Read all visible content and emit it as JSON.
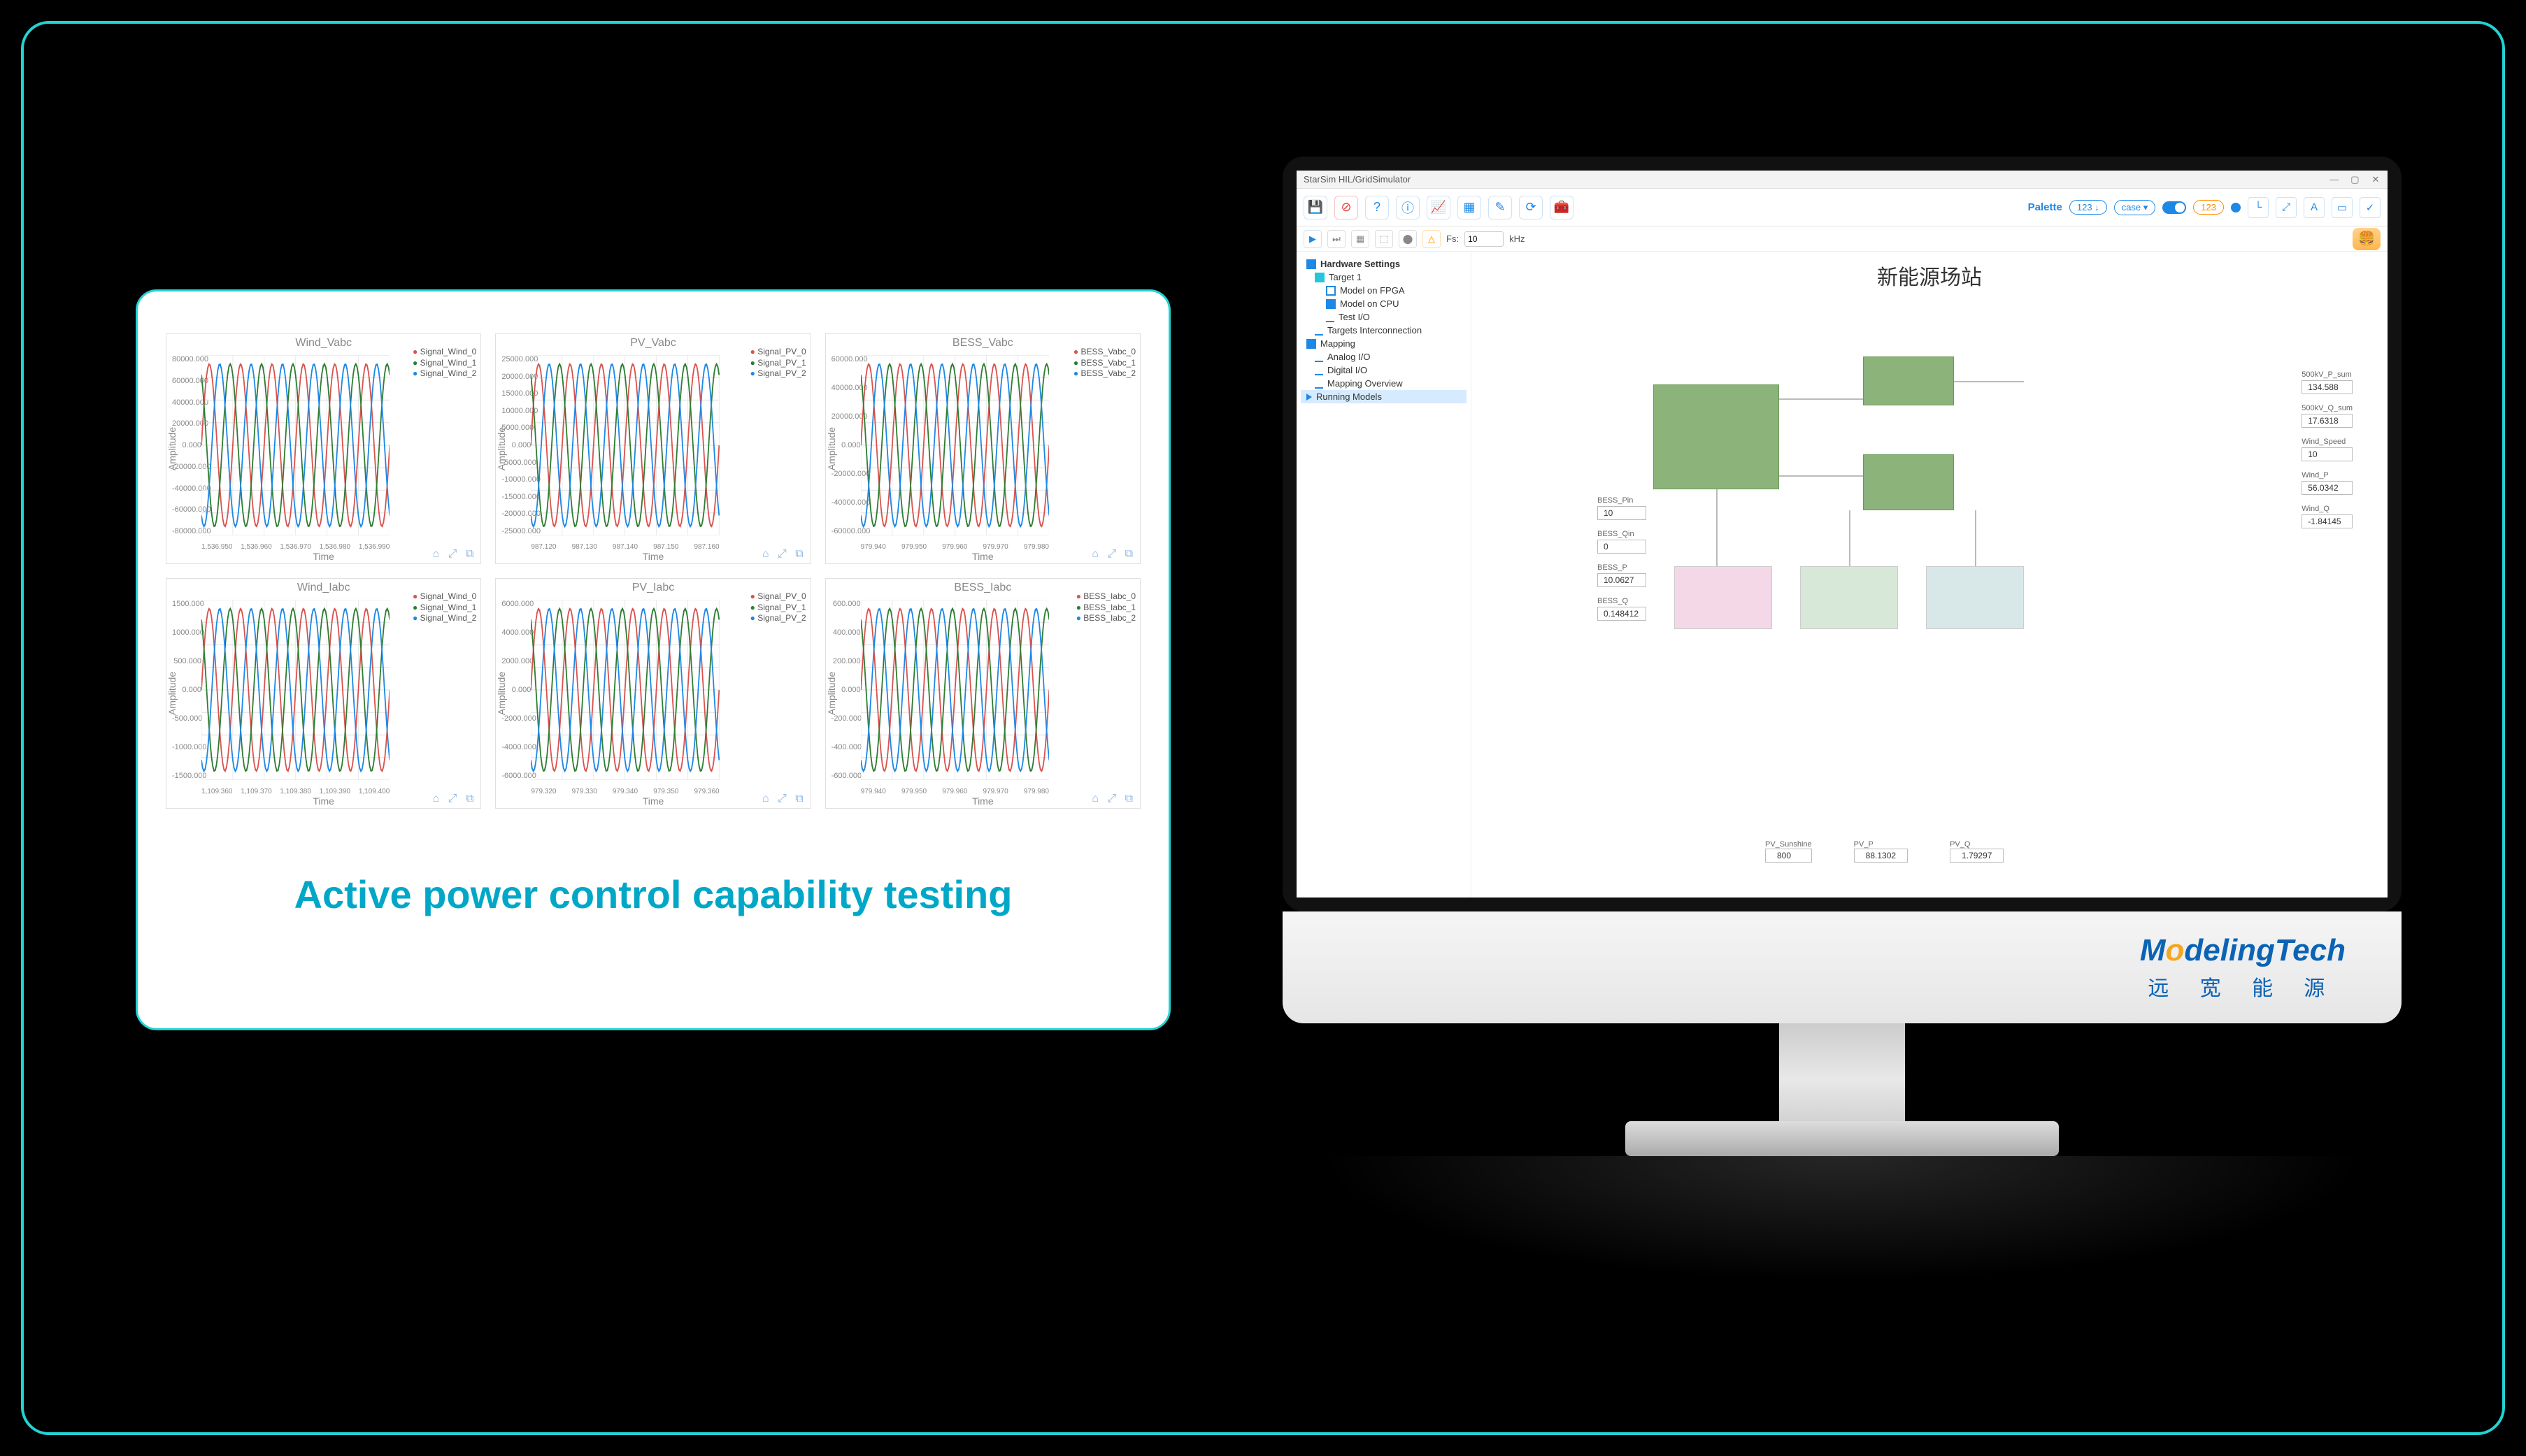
{
  "left_card": {
    "caption": "Active power control capability testing",
    "caption_color": "#00a7c7",
    "charts": [
      {
        "title": "Wind_Vabc",
        "ylabel": "Amplitude",
        "xlabel": "Time",
        "legend": [
          "Signal_Wind_0",
          "Signal_Wind_1",
          "Signal_Wind_2"
        ],
        "yticks": [
          "80000.000",
          "60000.000",
          "40000.000",
          "20000.000",
          "0.000",
          "-20000.000",
          "-40000.000",
          "-60000.000",
          "-80000.000"
        ],
        "xticks": [
          "1,536.950",
          "1,536.960",
          "1,536.970",
          "1,536.980",
          "1,536.990"
        ]
      },
      {
        "title": "PV_Vabc",
        "ylabel": "Amplitude",
        "xlabel": "Time",
        "legend": [
          "Signal_PV_0",
          "Signal_PV_1",
          "Signal_PV_2"
        ],
        "yticks": [
          "25000.000",
          "20000.000",
          "15000.000",
          "10000.000",
          "5000.000",
          "0.000",
          "-5000.000",
          "-10000.000",
          "-15000.000",
          "-20000.000",
          "-25000.000"
        ],
        "xticks": [
          "987.120",
          "987.130",
          "987.140",
          "987.150",
          "987.160"
        ]
      },
      {
        "title": "BESS_Vabc",
        "ylabel": "Amplitude",
        "xlabel": "Time",
        "legend": [
          "BESS_Vabc_0",
          "BESS_Vabc_1",
          "BESS_Vabc_2"
        ],
        "yticks": [
          "60000.000",
          "40000.000",
          "20000.000",
          "0.000",
          "-20000.000",
          "-40000.000",
          "-60000.000"
        ],
        "xticks": [
          "979.940",
          "979.950",
          "979.960",
          "979.970",
          "979.980"
        ]
      },
      {
        "title": "Wind_Iabc",
        "ylabel": "Amplitude",
        "xlabel": "Time",
        "legend": [
          "Signal_Wind_0",
          "Signal_Wind_1",
          "Signal_Wind_2"
        ],
        "yticks": [
          "1500.000",
          "1000.000",
          "500.000",
          "0.000",
          "-500.000",
          "-1000.000",
          "-1500.000"
        ],
        "xticks": [
          "1,109.360",
          "1,109.370",
          "1,109.380",
          "1,109.390",
          "1,109.400"
        ]
      },
      {
        "title": "PV_Iabc",
        "ylabel": "Amplitude",
        "xlabel": "Time",
        "legend": [
          "Signal_PV_0",
          "Signal_PV_1",
          "Signal_PV_2"
        ],
        "yticks": [
          "6000.000",
          "4000.000",
          "2000.000",
          "0.000",
          "-2000.000",
          "-4000.000",
          "-6000.000"
        ],
        "xticks": [
          "979.320",
          "979.330",
          "979.340",
          "979.350",
          "979.360"
        ]
      },
      {
        "title": "BESS_Iabc",
        "ylabel": "Amplitude",
        "xlabel": "Time",
        "legend": [
          "BESS_Iabc_0",
          "BESS_Iabc_1",
          "BESS_Iabc_2"
        ],
        "yticks": [
          "600.000",
          "400.000",
          "200.000",
          "0.000",
          "-200.000",
          "-400.000",
          "-600.000"
        ],
        "xticks": [
          "979.940",
          "979.950",
          "979.960",
          "979.970",
          "979.980"
        ]
      }
    ],
    "wave": {
      "colors": [
        "#d9534f",
        "#2e7d32",
        "#1e88e5"
      ],
      "phases_deg": [
        0,
        120,
        240
      ],
      "cycles": 6,
      "grid_color": "#e8e8e8",
      "line_width": 2
    }
  },
  "monitor": {
    "brand_en": "ModelingTech",
    "brand_cn": "远 宽 能 源",
    "window_title": "StarSim HIL/GridSimulator",
    "main_toolbar": {
      "palette_label": "Palette",
      "pill_123a": "123 ↓",
      "pill_case": "case ▾",
      "pill_123b": "123"
    },
    "sub_toolbar": {
      "fs_label": "Fs:",
      "fs_value": "10",
      "fs_unit": "kHz"
    },
    "tree": {
      "root": "Hardware Settings",
      "items": [
        {
          "label": "Target 1",
          "icon": "sq-cyan",
          "indent": 1
        },
        {
          "label": "Model on FPGA",
          "icon": "sq-outline",
          "indent": 2
        },
        {
          "label": "Model on CPU",
          "icon": "sq-blue",
          "indent": 2
        },
        {
          "label": "Test I/O",
          "icon": "link",
          "indent": 2
        },
        {
          "label": "Targets Interconnection",
          "icon": "link",
          "indent": 1
        },
        {
          "label": "Mapping",
          "icon": "sq-blue",
          "indent": 0
        },
        {
          "label": "Analog I/O",
          "icon": "link",
          "indent": 1
        },
        {
          "label": "Digital I/O",
          "icon": "link",
          "indent": 1
        },
        {
          "label": "Mapping Overview",
          "icon": "link",
          "indent": 1
        },
        {
          "label": "Running Models",
          "icon": "tri",
          "indent": 0,
          "selected": true
        }
      ]
    },
    "canvas": {
      "title": "新能源场站",
      "readouts_right": [
        {
          "label": "500kV_P_sum",
          "value": "134.588"
        },
        {
          "label": "500kV_Q_sum",
          "value": "17.6318"
        },
        {
          "label": "Wind_Speed",
          "value": "10"
        },
        {
          "label": "Wind_P",
          "value": "56.0342"
        },
        {
          "label": "Wind_Q",
          "value": "-1.84145"
        }
      ],
      "readouts_left": [
        {
          "label": "BESS_Pin",
          "value": "10"
        },
        {
          "label": "BESS_Qin",
          "value": "0"
        },
        {
          "label": "BESS_P",
          "value": "10.0627"
        },
        {
          "label": "BESS_Q",
          "value": "0.148412"
        }
      ],
      "footer": [
        {
          "label": "PV_Sunshine",
          "value": "800"
        },
        {
          "label": "PV_P",
          "value": "88.1302"
        },
        {
          "label": "PV_Q",
          "value": "1.79297"
        }
      ]
    }
  }
}
